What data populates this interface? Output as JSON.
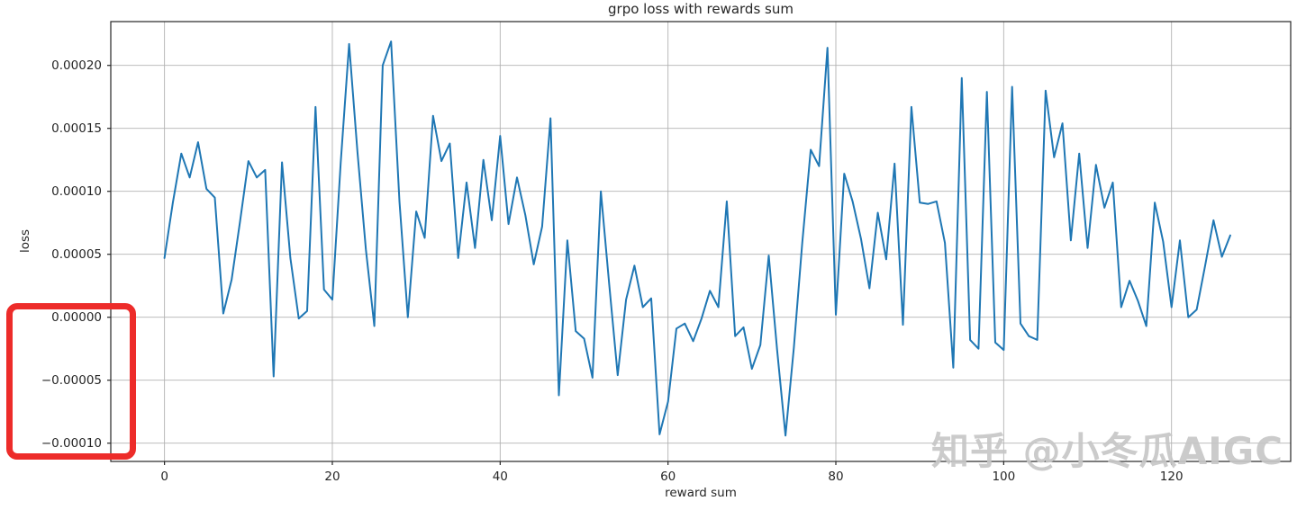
{
  "chart_data": {
    "type": "line",
    "title": "grpo loss with rewards sum",
    "xlabel": "reward sum",
    "ylabel": "loss",
    "legend": null,
    "grid": true,
    "line_color": "#1f77b4",
    "grid_color": "#b2b2b2",
    "spine_color": "#262626",
    "xlim": [
      -6.4,
      134.2
    ],
    "ylim": [
      -0.0001145,
      0.0002348
    ],
    "x_ticks": [
      0,
      20,
      40,
      60,
      80,
      100,
      120
    ],
    "x_tick_labels": [
      "0",
      "20",
      "40",
      "60",
      "80",
      "100",
      "120"
    ],
    "y_ticks": [
      0.0002,
      0.00015,
      0.0001,
      5e-05,
      0.0,
      -5e-05,
      -0.0001
    ],
    "y_tick_labels": [
      "0.00020",
      "0.00015",
      "0.00010",
      "0.00005",
      "0.00000",
      "−0.00005",
      "−0.00010"
    ],
    "x_start": 0,
    "x_step": 1,
    "values": [
      4.7e-05,
      9.1e-05,
      0.00013,
      0.000111,
      0.000139,
      0.000102,
      9.5e-05,
      3e-06,
      3e-05,
      7.6e-05,
      0.000124,
      0.000111,
      0.000117,
      -4.7e-05,
      0.000123,
      4.7e-05,
      -1e-06,
      5e-06,
      0.000167,
      2.2e-05,
      1.4e-05,
      0.000123,
      0.000217,
      0.000131,
      5.4e-05,
      -7e-06,
      0.0002,
      0.000219,
      9.2e-05,
      0.0,
      8.4e-05,
      6.3e-05,
      0.00016,
      0.000124,
      0.000138,
      4.7e-05,
      0.000107,
      5.5e-05,
      0.000125,
      7.7e-05,
      0.000144,
      7.4e-05,
      0.000111,
      8.1e-05,
      4.2e-05,
      7.2e-05,
      0.000158,
      -6.2e-05,
      6.1e-05,
      -1.1e-05,
      -1.7e-05,
      -4.8e-05,
      0.0001,
      2.6e-05,
      -4.6e-05,
      1.4e-05,
      4.1e-05,
      8e-06,
      1.5e-05,
      -9.3e-05,
      -6.7e-05,
      -9e-06,
      -5e-06,
      -1.9e-05,
      -1e-06,
      2.1e-05,
      8e-06,
      9.2e-05,
      -1.5e-05,
      -8e-06,
      -4.1e-05,
      -2.2e-05,
      4.9e-05,
      -2.6e-05,
      -9.4e-05,
      -2.4e-05,
      5.9e-05,
      0.000133,
      0.00012,
      0.000214,
      2e-06,
      0.000114,
      9.2e-05,
      6.2e-05,
      2.3e-05,
      8.3e-05,
      4.6e-05,
      0.000122,
      -6e-06,
      0.000167,
      9.1e-05,
      9e-05,
      9.2e-05,
      5.9e-05,
      -4e-05,
      0.00019,
      -1.8e-05,
      -2.5e-05,
      0.000179,
      -2e-05,
      -2.6e-05,
      0.000183,
      -5e-06,
      -1.5e-05,
      -1.8e-05,
      0.00018,
      0.000127,
      0.000154,
      6.1e-05,
      0.00013,
      5.5e-05,
      0.000121,
      8.7e-05,
      0.000107,
      8e-06,
      2.9e-05,
      1.3e-05,
      -7e-06,
      9.1e-05,
      6e-05,
      8e-06,
      6.1e-05,
      0.0,
      6e-06,
      4.1e-05,
      7.7e-05,
      4.8e-05,
      6.5e-05
    ]
  },
  "annotations": {
    "red_box": {
      "color": "#ed2c2a",
      "highlighted_tick_labels": [
        "0.00000",
        "−0.00005",
        "−0.00010"
      ]
    },
    "watermark": {
      "text": "知乎 @小冬瓜AIGC",
      "color": "#c7c7c7"
    }
  }
}
